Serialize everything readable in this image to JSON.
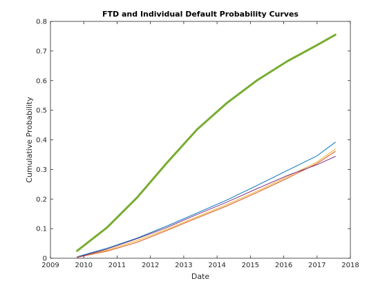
{
  "chart_data": {
    "type": "line",
    "title": "FTD and Individual Default Probability Curves",
    "xlabel": "Date",
    "ylabel": "Cumulative Probability",
    "xlim": [
      2009,
      2018
    ],
    "ylim": [
      0,
      0.8
    ],
    "x_ticks": [
      "2009",
      "2010",
      "2011",
      "2012",
      "2013",
      "2014",
      "2015",
      "2016",
      "2017",
      "2018"
    ],
    "y_ticks": [
      "0",
      "0.1",
      "0.2",
      "0.3",
      "0.4",
      "0.5",
      "0.6",
      "0.7",
      "0.8"
    ],
    "grid": false,
    "legend": "none",
    "x": [
      2009.8,
      2010.7,
      2011.6,
      2012.5,
      2013.4,
      2014.3,
      2015.2,
      2016.1,
      2017.0,
      2017.55
    ],
    "series": [
      {
        "color": "#0072BD",
        "line_width": 1,
        "values": [
          0.005,
          0.034,
          0.068,
          0.109,
          0.153,
          0.197,
          0.246,
          0.296,
          0.346,
          0.392
        ]
      },
      {
        "color": "#D95319",
        "line_width": 1,
        "values": [
          0.003,
          0.024,
          0.054,
          0.094,
          0.136,
          0.177,
          0.222,
          0.27,
          0.32,
          0.361
        ]
      },
      {
        "color": "#EDB120",
        "line_width": 1,
        "values": [
          0.004,
          0.027,
          0.06,
          0.098,
          0.14,
          0.182,
          0.227,
          0.275,
          0.325,
          0.369
        ]
      },
      {
        "color": "#7E2F8E",
        "line_width": 1,
        "values": [
          0.003,
          0.031,
          0.066,
          0.104,
          0.148,
          0.19,
          0.235,
          0.279,
          0.316,
          0.344
        ]
      },
      {
        "color": "#77AC30",
        "line_width": 3,
        "values": [
          0.025,
          0.104,
          0.205,
          0.323,
          0.435,
          0.525,
          0.601,
          0.665,
          0.72,
          0.755
        ]
      }
    ]
  }
}
